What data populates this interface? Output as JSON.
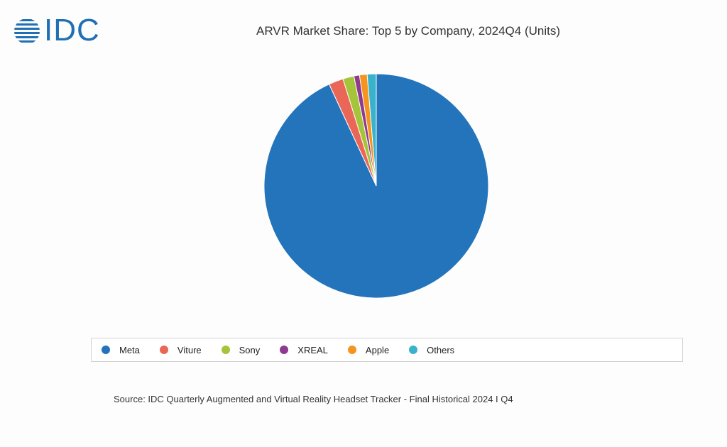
{
  "logo": {
    "text": "IDC",
    "icon": "globe-icon",
    "color": "#1f6fb4"
  },
  "chart_data": {
    "type": "pie",
    "title": "ARVR Market Share: Top 5 by Company, 2024Q4 (Units)",
    "categories": [
      "Meta",
      "Viture",
      "Sony",
      "XREAL",
      "Apple",
      "Others"
    ],
    "values": [
      93.1,
      2.1,
      1.6,
      0.8,
      1.1,
      1.3
    ],
    "colors": [
      "#2474bb",
      "#ea6656",
      "#a4c43a",
      "#8e3a8e",
      "#f5941f",
      "#3ab2cc"
    ],
    "legend_position": "bottom"
  },
  "source": "Source: IDC Quarterly Augmented and Virtual Reality Headset Tracker - Final Historical 2024 I Q4"
}
